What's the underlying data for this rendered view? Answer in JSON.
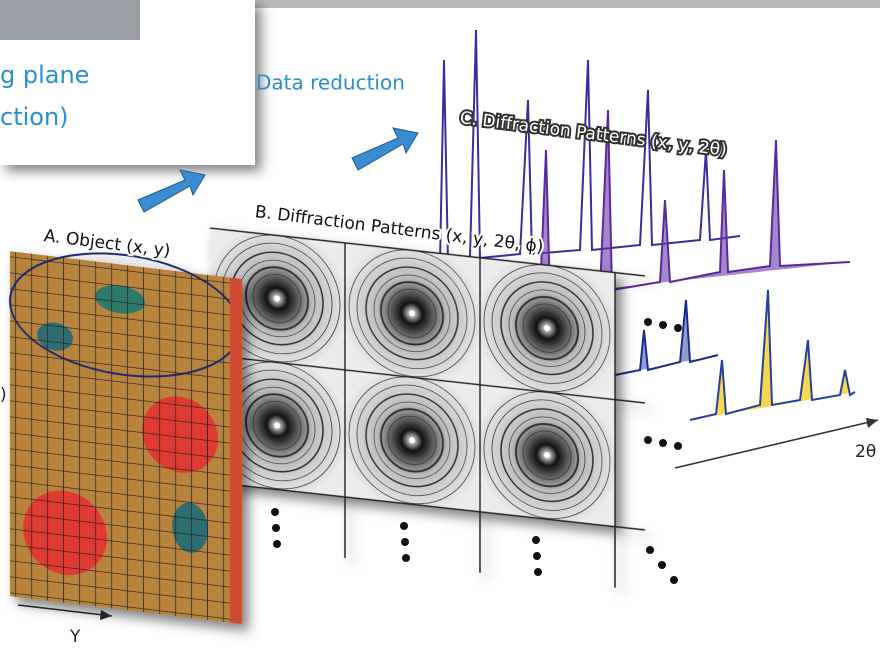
{
  "header_text": {
    "line1": "g plane",
    "line2": "ction)"
  },
  "labels": {
    "data_reduction": "Data reduction",
    "panel_c": "C. Diffraction Patterns (x, y, 2θ)",
    "panel_b": "B. Diffraction Patterns (x, y, 2θ, ϕ)",
    "panel_a": "A. Object (x, y)",
    "axis_2theta": "2θ",
    "axis_y": "Y",
    "left_fragment": ")"
  }
}
